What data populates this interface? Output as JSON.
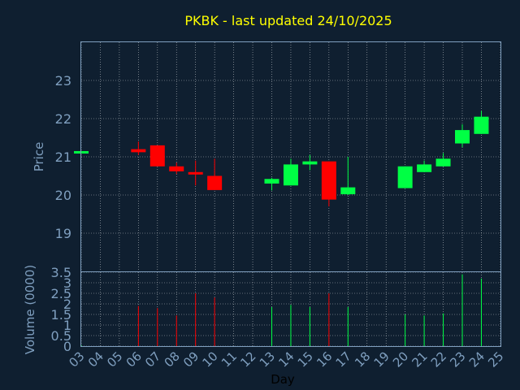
{
  "chart_data": {
    "type": "candlestick",
    "title": "PKBK - last updated 24/10/2025",
    "xlabel": "Day",
    "price_ylabel": "Price",
    "volume_ylabel": "Volume (0000)",
    "x_ticks": [
      "03",
      "04",
      "05",
      "06",
      "07",
      "08",
      "09",
      "10",
      "11",
      "12",
      "13",
      "14",
      "15",
      "16",
      "17",
      "18",
      "19",
      "20",
      "21",
      "22",
      "23",
      "24",
      "25"
    ],
    "price_yticks": [
      19,
      20,
      21,
      22,
      23
    ],
    "price_ylim": [
      18.0,
      24.0
    ],
    "volume_yticks": [
      0,
      0.5,
      1,
      1.5,
      2,
      2.5,
      3,
      3.5
    ],
    "volume_ytick_labels": [
      "0",
      "0.5",
      "1",
      "1.5",
      "2",
      "2.5",
      "3",
      "3.5"
    ],
    "volume_ylim": [
      0,
      3.5
    ],
    "grid": true,
    "colors": {
      "background": "#0f1f30",
      "up": "#00ff44",
      "down": "#ff0000",
      "title": "#ffff00",
      "tick": "#7f9fbf",
      "frame": "#7f9fbf",
      "grid": "#ffffff"
    },
    "candles": [
      {
        "day": 3,
        "open": 21.1,
        "close": 21.15,
        "high": 21.15,
        "low": 21.1,
        "volume": 0.05
      },
      {
        "day": 6,
        "open": 21.2,
        "close": 21.12,
        "high": 21.4,
        "low": 21.05,
        "volume": 1.9
      },
      {
        "day": 7,
        "open": 21.3,
        "close": 20.75,
        "high": 21.3,
        "low": 20.75,
        "volume": 1.8
      },
      {
        "day": 8,
        "open": 20.75,
        "close": 20.62,
        "high": 20.85,
        "low": 20.55,
        "volume": 1.45
      },
      {
        "day": 9,
        "open": 20.6,
        "close": 20.58,
        "high": 20.9,
        "low": 20.25,
        "volume": 2.5
      },
      {
        "day": 10,
        "open": 20.5,
        "close": 20.13,
        "high": 20.95,
        "low": 20.13,
        "volume": 2.3
      },
      {
        "day": 13,
        "open": 20.3,
        "close": 20.42,
        "high": 20.45,
        "low": 20.12,
        "volume": 1.85
      },
      {
        "day": 14,
        "open": 20.25,
        "close": 20.8,
        "high": 20.95,
        "low": 20.25,
        "volume": 1.95
      },
      {
        "day": 15,
        "open": 20.8,
        "close": 20.88,
        "high": 21.05,
        "low": 20.65,
        "volume": 1.85
      },
      {
        "day": 16,
        "open": 20.88,
        "close": 19.88,
        "high": 20.88,
        "low": 19.7,
        "volume": 2.5
      },
      {
        "day": 17,
        "open": 20.02,
        "close": 20.2,
        "high": 21.0,
        "low": 20.0,
        "volume": 1.85
      },
      {
        "day": 20,
        "open": 20.18,
        "close": 20.75,
        "high": 20.75,
        "low": 20.18,
        "volume": 1.5
      },
      {
        "day": 21,
        "open": 20.6,
        "close": 20.8,
        "high": 20.9,
        "low": 20.6,
        "volume": 1.45
      },
      {
        "day": 22,
        "open": 20.75,
        "close": 20.95,
        "high": 21.1,
        "low": 20.75,
        "volume": 1.55
      },
      {
        "day": 23,
        "open": 21.35,
        "close": 21.7,
        "high": 21.85,
        "low": 21.25,
        "volume": 3.4
      },
      {
        "day": 24,
        "open": 21.6,
        "close": 22.05,
        "high": 22.2,
        "low": 21.6,
        "volume": 3.2
      }
    ]
  }
}
